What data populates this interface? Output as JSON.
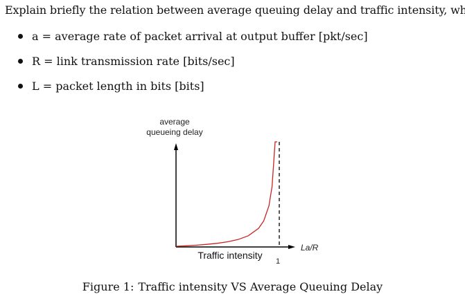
{
  "intro": "Explain briefly the relation between average queuing delay and traffic intensity, where",
  "bullets": [
    "a = average rate of packet arrival at output buffer [pkt/sec]",
    "R = link transmission rate [bits/sec]",
    "L = packet length in bits [bits]"
  ],
  "chart_data": {
    "type": "line",
    "ylabel_line1": "average",
    "ylabel_line2": "queueing delay",
    "xlabel": "Traffic intensity",
    "x_axis_end_label": "La/R",
    "x_tick_label": "1",
    "series_color": "#cc2222",
    "x": [
      0,
      0.1,
      0.2,
      0.3,
      0.4,
      0.5,
      0.6,
      0.7,
      0.8,
      0.85,
      0.9,
      0.93,
      0.96,
      0.98
    ],
    "grid": false,
    "asymptote_at": 1
  },
  "caption": {
    "label": "Figure 1:",
    "text": "Traffic intensity VS Average Queuing Delay"
  }
}
